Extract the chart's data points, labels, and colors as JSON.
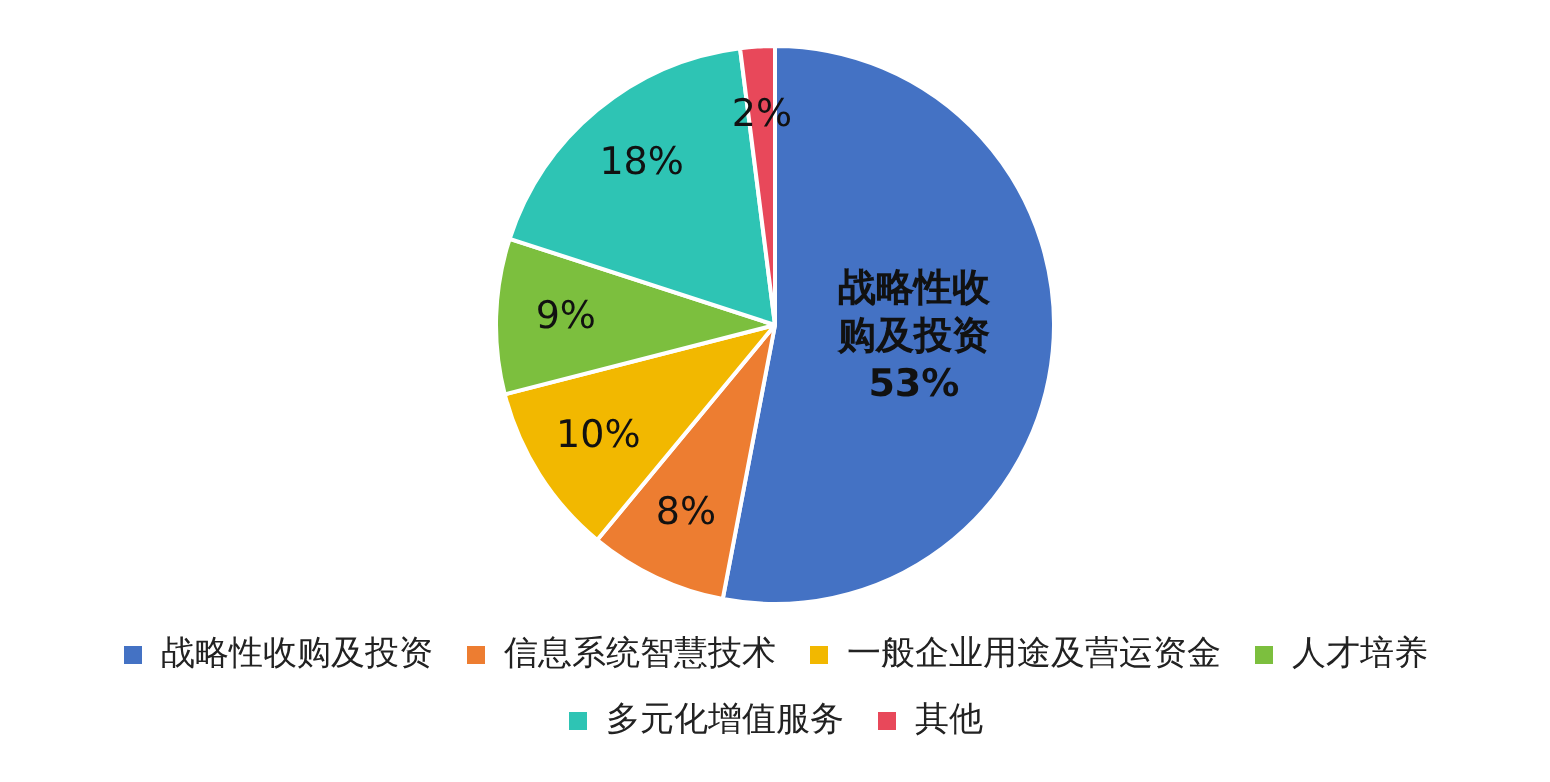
{
  "chart_data": {
    "type": "pie",
    "categories": [
      "战略性收购及投资",
      "信息系统智慧技术",
      "一般企业用途及营运资金",
      "人才培养",
      "多元化增值服务",
      "其他"
    ],
    "values": [
      53,
      8,
      10,
      9,
      18,
      2
    ],
    "colors": [
      "#4472c4",
      "#ed7d31",
      "#f2b800",
      "#7cbf3e",
      "#2ec4b4",
      "#e8485a"
    ],
    "value_labels": [
      "战略性收购及投资\n53%",
      "8%",
      "10%",
      "9%",
      "18%",
      "2%"
    ],
    "legend": "bottom"
  }
}
